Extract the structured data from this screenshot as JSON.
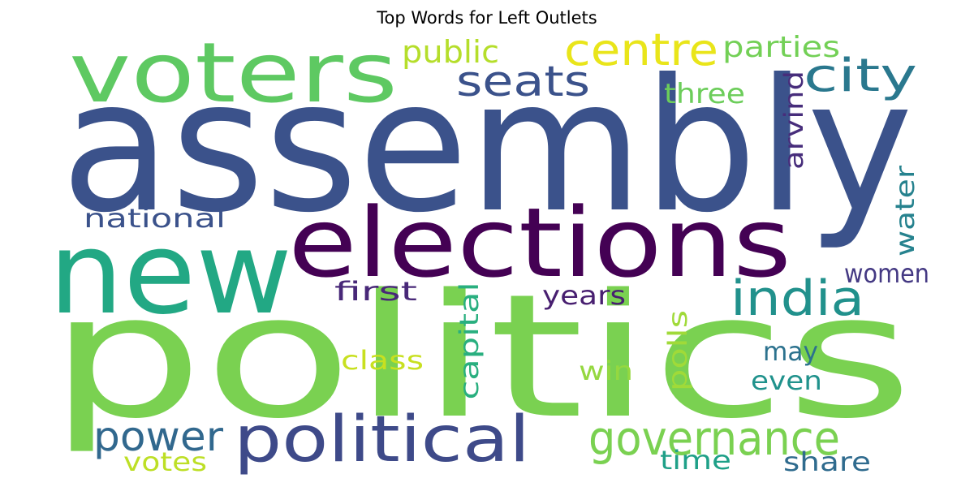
{
  "chart_data": {
    "type": "wordcloud",
    "title": "Top Words for Left Outlets",
    "colormap": "viridis",
    "words": [
      {
        "text": "assembly",
        "weight": 1.0,
        "color": "#3b528b",
        "orientation": "horizontal"
      },
      {
        "text": "politics",
        "weight": 0.94,
        "color": "#7ad151",
        "orientation": "horizontal"
      },
      {
        "text": "new",
        "weight": 0.62,
        "color": "#22a884",
        "orientation": "horizontal"
      },
      {
        "text": "elections",
        "weight": 0.52,
        "color": "#440154",
        "orientation": "horizontal"
      },
      {
        "text": "voters",
        "weight": 0.46,
        "color": "#5ec962",
        "orientation": "horizontal"
      },
      {
        "text": "political",
        "weight": 0.36,
        "color": "#3e4a89",
        "orientation": "horizontal"
      },
      {
        "text": "governance",
        "weight": 0.28,
        "color": "#7ad151",
        "orientation": "horizontal"
      },
      {
        "text": "india",
        "weight": 0.28,
        "color": "#21918c",
        "orientation": "horizontal"
      },
      {
        "text": "city",
        "weight": 0.26,
        "color": "#2a788e",
        "orientation": "horizontal"
      },
      {
        "text": "centre",
        "weight": 0.24,
        "color": "#e9e51a",
        "orientation": "horizontal"
      },
      {
        "text": "seats",
        "weight": 0.24,
        "color": "#3b528b",
        "orientation": "horizontal"
      },
      {
        "text": "power",
        "weight": 0.24,
        "color": "#31688e",
        "orientation": "horizontal"
      },
      {
        "text": "public",
        "weight": 0.18,
        "color": "#b5de2b",
        "orientation": "horizontal"
      },
      {
        "text": "parties",
        "weight": 0.17,
        "color": "#73d056",
        "orientation": "horizontal"
      },
      {
        "text": "three",
        "weight": 0.15,
        "color": "#6ccd5a",
        "orientation": "horizontal"
      },
      {
        "text": "arvind",
        "weight": 0.15,
        "color": "#472d7b",
        "orientation": "vertical"
      },
      {
        "text": "water",
        "weight": 0.15,
        "color": "#26828e",
        "orientation": "vertical"
      },
      {
        "text": "national",
        "weight": 0.15,
        "color": "#3b528b",
        "orientation": "horizontal"
      },
      {
        "text": "women",
        "weight": 0.15,
        "color": "#443983",
        "orientation": "horizontal"
      },
      {
        "text": "first",
        "weight": 0.15,
        "color": "#482878",
        "orientation": "horizontal"
      },
      {
        "text": "years",
        "weight": 0.15,
        "color": "#481f70",
        "orientation": "horizontal"
      },
      {
        "text": "capital",
        "weight": 0.15,
        "color": "#29af7f",
        "orientation": "vertical"
      },
      {
        "text": "polls",
        "weight": 0.15,
        "color": "#a0da39",
        "orientation": "vertical"
      },
      {
        "text": "class",
        "weight": 0.15,
        "color": "#c8e020",
        "orientation": "horizontal"
      },
      {
        "text": "may",
        "weight": 0.15,
        "color": "#2c728e",
        "orientation": "horizontal"
      },
      {
        "text": "win",
        "weight": 0.15,
        "color": "#95d840",
        "orientation": "horizontal"
      },
      {
        "text": "even",
        "weight": 0.15,
        "color": "#20928c",
        "orientation": "horizontal"
      },
      {
        "text": "time",
        "weight": 0.15,
        "color": "#1fa088",
        "orientation": "horizontal"
      },
      {
        "text": "share",
        "weight": 0.15,
        "color": "#2f6b8e",
        "orientation": "horizontal"
      },
      {
        "text": "votes",
        "weight": 0.15,
        "color": "#bddf26",
        "orientation": "horizontal"
      }
    ]
  }
}
